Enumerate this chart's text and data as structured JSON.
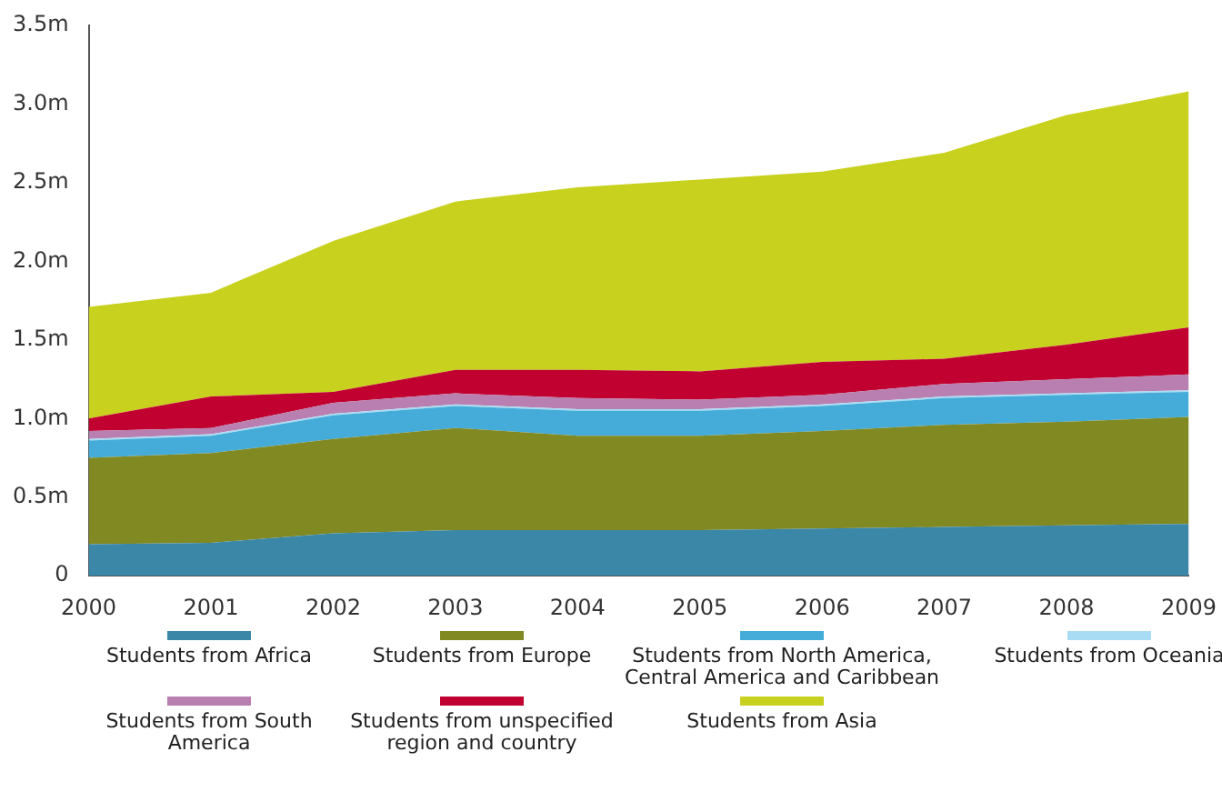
{
  "chart_data": {
    "type": "area",
    "stacked": true,
    "legend": "bottom",
    "grid": false,
    "categories": [
      "2000",
      "2001",
      "2002",
      "2003",
      "2004",
      "2005",
      "2006",
      "2007",
      "2008",
      "2009"
    ],
    "ylim": [
      0,
      3.5
    ],
    "yticks": [
      {
        "value": 0,
        "label": "0"
      },
      {
        "value": 0.5,
        "label": "0.5m"
      },
      {
        "value": 1,
        "label": "1.0m"
      },
      {
        "value": 1.5,
        "label": "1.5m"
      },
      {
        "value": 2,
        "label": "2.0m"
      },
      {
        "value": 2.5,
        "label": "2.5m"
      },
      {
        "value": 3,
        "label": "3.0m"
      },
      {
        "value": 3.5,
        "label": "3.5m"
      }
    ],
    "series": [
      {
        "name": "Students from Africa",
        "color": "#3a87a8",
        "values": [
          0.2,
          0.21,
          0.27,
          0.29,
          0.29,
          0.29,
          0.3,
          0.31,
          0.32,
          0.33
        ]
      },
      {
        "name": "Students from Europe",
        "color": "#818923",
        "values": [
          0.55,
          0.57,
          0.6,
          0.65,
          0.6,
          0.6,
          0.62,
          0.65,
          0.66,
          0.68
        ]
      },
      {
        "name": "Students from North America, Central America and Caribbean",
        "color": "#45acd9",
        "values": [
          0.11,
          0.11,
          0.15,
          0.14,
          0.16,
          0.16,
          0.16,
          0.17,
          0.17,
          0.16
        ]
      },
      {
        "name": "Students from Oceania",
        "color": "#a8dcf4",
        "values": [
          0.01,
          0.01,
          0.01,
          0.01,
          0.01,
          0.01,
          0.01,
          0.01,
          0.01,
          0.01
        ]
      },
      {
        "name": "Students from South America",
        "color": "#b87fb0",
        "values": [
          0.05,
          0.04,
          0.07,
          0.07,
          0.07,
          0.06,
          0.06,
          0.08,
          0.09,
          0.1
        ]
      },
      {
        "name": "Students from unspecified region and country",
        "color": "#c10230",
        "values": [
          0.08,
          0.2,
          0.07,
          0.15,
          0.18,
          0.18,
          0.21,
          0.16,
          0.22,
          0.3
        ]
      },
      {
        "name": "Students from Asia",
        "color": "#c9d11f",
        "values": [
          0.71,
          0.66,
          0.96,
          1.07,
          1.16,
          1.22,
          1.21,
          1.31,
          1.46,
          1.5
        ]
      }
    ]
  }
}
